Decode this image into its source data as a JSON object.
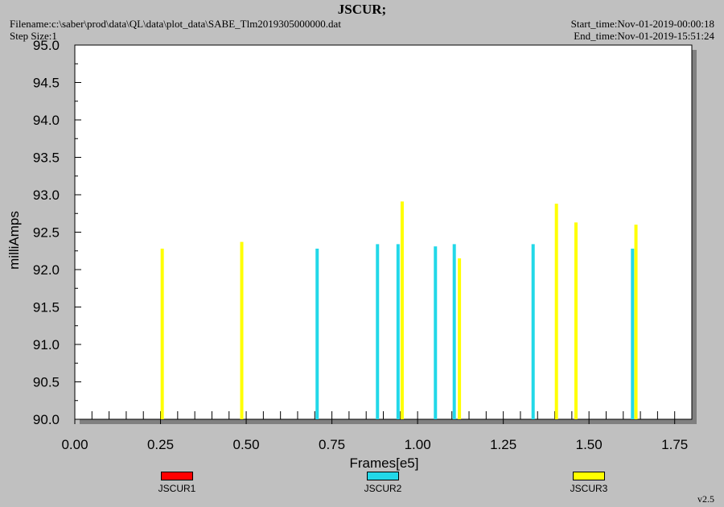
{
  "header": {
    "title": "JSCUR;",
    "filename": "Filename:c:\\saber\\prod\\data\\QL\\data\\plot_data\\SABE_Tlm2019305000000.dat",
    "step_size": "Step Size:1",
    "start_time": "Start_time:Nov-01-2019-00:00:18",
    "end_time": "End_time:Nov-01-2019-15:51:24"
  },
  "footer": {
    "version": "v2.5"
  },
  "legend": [
    {
      "label": "JSCUR1",
      "color": "#ff0000"
    },
    {
      "label": "JSCUR2",
      "color": "#22d8e8"
    },
    {
      "label": "JSCUR3",
      "color": "#ffff00"
    }
  ],
  "chart_data": {
    "type": "bar",
    "title": "JSCUR;",
    "xlabel": "Frames[e5]",
    "ylabel": "milliAmps",
    "xlim": [
      0.0,
      1.8
    ],
    "ylim": [
      90.0,
      95.0
    ],
    "xticks": [
      "0.00",
      "0.25",
      "0.50",
      "0.75",
      "1.00",
      "1.25",
      "1.50",
      "1.75"
    ],
    "yticks": [
      "90.0",
      "90.5",
      "91.0",
      "91.5",
      "92.0",
      "92.5",
      "93.0",
      "93.5",
      "94.0",
      "94.5",
      "95.0"
    ],
    "grid": false,
    "series": [
      {
        "name": "JSCUR1",
        "color": "#ff0000",
        "points": []
      },
      {
        "name": "JSCUR2",
        "color": "#22d8e8",
        "points": [
          {
            "x": 0.707,
            "y": 92.28
          },
          {
            "x": 0.883,
            "y": 92.34
          },
          {
            "x": 0.943,
            "y": 92.34
          },
          {
            "x": 1.052,
            "y": 92.31
          },
          {
            "x": 1.107,
            "y": 92.34
          },
          {
            "x": 1.337,
            "y": 92.34
          },
          {
            "x": 1.627,
            "y": 92.28
          }
        ]
      },
      {
        "name": "JSCUR3",
        "color": "#ffff00",
        "points": [
          {
            "x": 0.255,
            "y": 92.28
          },
          {
            "x": 0.487,
            "y": 92.37
          },
          {
            "x": 0.955,
            "y": 92.91
          },
          {
            "x": 1.122,
            "y": 92.15
          },
          {
            "x": 1.405,
            "y": 92.88
          },
          {
            "x": 1.462,
            "y": 92.63
          },
          {
            "x": 1.637,
            "y": 92.6
          }
        ]
      }
    ]
  }
}
